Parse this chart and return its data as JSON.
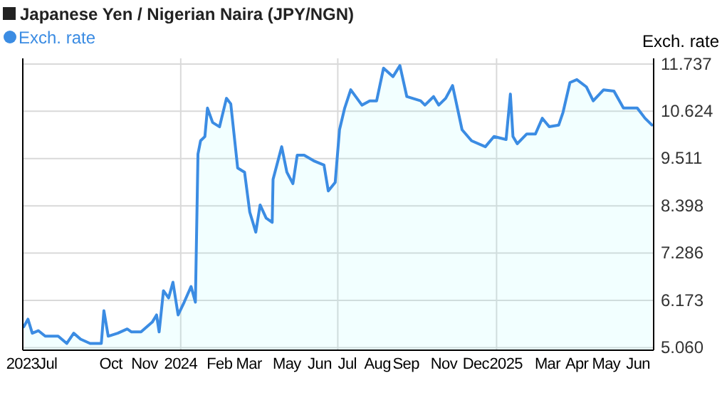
{
  "chart_data": {
    "type": "area",
    "title": "Japanese Yen / Nigerian Naira (JPY/NGN)",
    "ylabel": "Exch. rate",
    "legend": "top left",
    "grid": "y",
    "xlim": [
      "2023-07-02",
      "2025-07-02"
    ],
    "xticks": [
      {
        "value": "2023-07-02",
        "label": "2023"
      },
      {
        "value": "2023-07-31",
        "label": "Jul"
      },
      {
        "value": "2023-10-12",
        "label": "Oct"
      },
      {
        "value": "2023-11-20",
        "label": "Nov"
      },
      {
        "value": "2024-01-01",
        "label": "2024"
      },
      {
        "value": "2024-02-15",
        "label": "Feb"
      },
      {
        "value": "2024-03-20",
        "label": "Mar"
      },
      {
        "value": "2024-05-03",
        "label": "May"
      },
      {
        "value": "2024-06-10",
        "label": "Jun"
      },
      {
        "value": "2024-07-12",
        "label": "Jul"
      },
      {
        "value": "2024-08-16",
        "label": "Aug"
      },
      {
        "value": "2024-09-18",
        "label": "Sep"
      },
      {
        "value": "2024-11-01",
        "label": "Nov"
      },
      {
        "value": "2024-12-08",
        "label": "Dec"
      },
      {
        "value": "2025-01-12",
        "label": "2025"
      },
      {
        "value": "2025-03-01",
        "label": "Mar"
      },
      {
        "value": "2025-04-04",
        "label": "Apr"
      },
      {
        "value": "2025-05-08",
        "label": "May"
      },
      {
        "value": "2025-06-14",
        "label": "Jun"
      }
    ],
    "ylim": [
      5.0,
      11.87
    ],
    "yticks": [
      {
        "value": 5.06,
        "label": "5.060"
      },
      6.173,
      7.286,
      8.398,
      9.511,
      10.624,
      11.737
    ],
    "ref_lines": [
      {
        "axis": "x",
        "value": "2024-01-01",
        "color": "#d9d9d9"
      },
      {
        "axis": "x",
        "value": "2024-07-01",
        "color": "#d9d9d9"
      },
      {
        "axis": "x",
        "value": "2025-01-01",
        "color": "#d9d9d9"
      }
    ],
    "x": [
      "2023-07-03",
      "2023-07-08",
      "2023-07-13",
      "2023-07-20",
      "2023-07-28",
      "2023-08-12",
      "2023-08-22",
      "2023-08-30",
      "2023-09-07",
      "2023-09-18",
      "2023-10-01",
      "2023-10-04",
      "2023-10-09",
      "2023-10-20",
      "2023-10-31",
      "2023-11-05",
      "2023-11-16",
      "2023-11-29",
      "2023-12-04",
      "2023-12-07",
      "2023-12-12",
      "2023-12-18",
      "2023-12-23",
      "2023-12-29",
      "2024-01-05",
      "2024-01-13",
      "2024-01-18",
      "2024-01-21",
      "2024-01-24",
      "2024-01-29",
      "2024-02-01",
      "2024-02-07",
      "2024-02-15",
      "2024-02-23",
      "2024-02-28",
      "2024-03-07",
      "2024-03-15",
      "2024-03-21",
      "2024-03-28",
      "2024-04-02",
      "2024-04-09",
      "2024-04-16",
      "2024-04-17",
      "2024-04-27",
      "2024-05-03",
      "2024-05-10",
      "2024-05-15",
      "2024-05-23",
      "2024-06-03",
      "2024-06-15",
      "2024-06-20",
      "2024-06-28",
      "2024-07-03",
      "2024-07-09",
      "2024-07-16",
      "2024-07-29",
      "2024-08-07",
      "2024-08-15",
      "2024-08-23",
      "2024-09-03",
      "2024-09-11",
      "2024-09-19",
      "2024-10-05",
      "2024-10-10",
      "2024-10-20",
      "2024-10-26",
      "2024-11-03",
      "2024-11-11",
      "2024-11-22",
      "2024-12-03",
      "2024-12-19",
      "2024-12-29",
      "2025-01-12",
      "2025-01-17",
      "2025-01-20",
      "2025-01-25",
      "2025-02-05",
      "2025-02-15",
      "2025-02-23",
      "2025-03-03",
      "2025-03-14",
      "2025-03-19",
      "2025-03-27",
      "2025-04-04",
      "2025-04-15",
      "2025-04-23",
      "2025-05-05",
      "2025-05-17",
      "2025-05-28",
      "2025-06-13",
      "2025-06-22",
      "2025-06-30"
    ],
    "series": [
      {
        "name": "Exch. rate",
        "color": "#3b8ce3",
        "values": [
          5.55,
          5.73,
          5.4,
          5.46,
          5.33,
          5.33,
          5.16,
          5.4,
          5.26,
          5.16,
          5.16,
          5.93,
          5.33,
          5.4,
          5.5,
          5.43,
          5.43,
          5.66,
          5.83,
          5.43,
          6.4,
          6.23,
          6.6,
          5.83,
          6.13,
          6.5,
          6.13,
          9.62,
          9.93,
          10.03,
          10.7,
          10.36,
          10.26,
          10.93,
          10.8,
          9.29,
          9.19,
          8.25,
          7.78,
          8.42,
          8.11,
          8.01,
          9.02,
          9.79,
          9.19,
          8.92,
          9.59,
          9.59,
          9.46,
          9.36,
          8.75,
          8.95,
          10.19,
          10.7,
          11.13,
          10.77,
          10.87,
          10.87,
          11.64,
          11.44,
          11.7,
          10.97,
          10.87,
          10.77,
          10.97,
          10.77,
          10.93,
          11.23,
          10.19,
          9.93,
          9.79,
          10.03,
          9.96,
          11.03,
          10.03,
          9.86,
          10.09,
          10.09,
          10.46,
          10.26,
          10.3,
          10.6,
          11.3,
          11.37,
          11.2,
          10.87,
          11.13,
          11.1,
          10.7,
          10.7,
          10.46,
          10.3
        ]
      }
    ]
  }
}
